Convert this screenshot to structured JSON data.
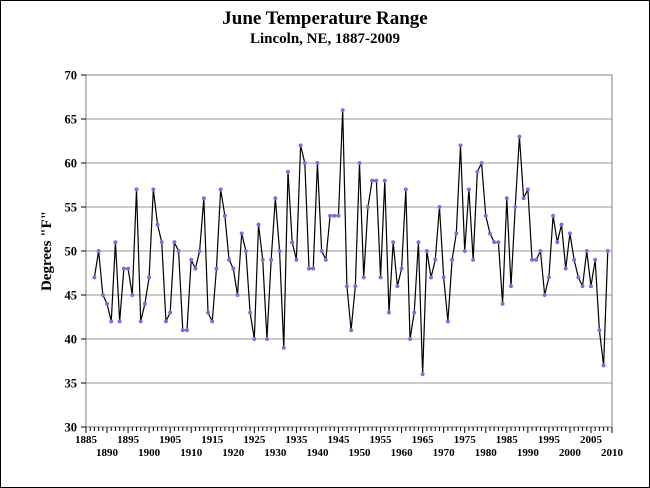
{
  "chart_data": {
    "type": "line",
    "title": "June Temperature Range",
    "subtitle": "Lincoln, NE, 1887-2009",
    "xlabel": "",
    "ylabel": "Degrees \"F\"",
    "xlim": [
      1885,
      2010
    ],
    "ylim": [
      30,
      70
    ],
    "yticks": [
      30,
      35,
      40,
      45,
      50,
      55,
      60,
      65,
      70
    ],
    "xticks_top_row": [
      1885,
      1895,
      1905,
      1915,
      1925,
      1935,
      1945,
      1955,
      1965,
      1975,
      1985,
      1995,
      2005
    ],
    "xticks_bottom_row": [
      1890,
      1900,
      1910,
      1920,
      1930,
      1940,
      1950,
      1960,
      1970,
      1980,
      1990,
      2000,
      2010
    ],
    "grid": "horizontal",
    "line_color": "#000000",
    "marker_color": "#7b6fd8",
    "series": [
      {
        "x": [
          1887,
          1888,
          1889,
          1890,
          1891,
          1892,
          1893,
          1894,
          1895,
          1896,
          1897,
          1898,
          1899,
          1900,
          1901,
          1902,
          1903,
          1904,
          1905,
          1906,
          1907,
          1908,
          1909,
          1910,
          1911,
          1912,
          1913,
          1914,
          1915,
          1916,
          1917,
          1918,
          1919,
          1920,
          1921,
          1922,
          1923,
          1924,
          1925,
          1926,
          1927,
          1928,
          1929,
          1930,
          1931,
          1932,
          1933,
          1934,
          1935,
          1936,
          1937,
          1938,
          1939,
          1940,
          1941,
          1942,
          1943,
          1944,
          1945,
          1946,
          1947,
          1948,
          1949,
          1950,
          1951,
          1952,
          1953,
          1954,
          1955,
          1956,
          1957,
          1958,
          1959,
          1960,
          1961,
          1962,
          1963,
          1964,
          1965,
          1966,
          1967,
          1968,
          1969,
          1970,
          1971,
          1972,
          1973,
          1974,
          1975,
          1976,
          1977,
          1978,
          1979,
          1980,
          1981,
          1982,
          1983,
          1984,
          1985,
          1986,
          1987,
          1988,
          1989,
          1990,
          1991,
          1992,
          1993,
          1994,
          1995,
          1996,
          1997,
          1998,
          1999,
          2000,
          2001,
          2002,
          2003,
          2004,
          2005,
          2006,
          2007,
          2008,
          2009
        ],
        "values": [
          47,
          50,
          45,
          44,
          42,
          51,
          42,
          48,
          48,
          45,
          57,
          42,
          44,
          47,
          57,
          53,
          51,
          42,
          43,
          51,
          50,
          41,
          41,
          49,
          48,
          50,
          56,
          43,
          42,
          48,
          57,
          54,
          49,
          48,
          45,
          52,
          50,
          43,
          40,
          53,
          49,
          40,
          49,
          56,
          50,
          39,
          59,
          51,
          49,
          62,
          60,
          48,
          48,
          60,
          50,
          49,
          54,
          54,
          54,
          66,
          46,
          41,
          46,
          60,
          47,
          55,
          58,
          58,
          47,
          58,
          43,
          51,
          46,
          48,
          57,
          40,
          43,
          51,
          36,
          50,
          47,
          49,
          55,
          47,
          42,
          49,
          52,
          62,
          50,
          57,
          49,
          59,
          60,
          54,
          52,
          51,
          51,
          44,
          56,
          46,
          55,
          63,
          56,
          57,
          49,
          49,
          50,
          45,
          47,
          54,
          51,
          53,
          48,
          52,
          49,
          47,
          46,
          50,
          46,
          49,
          41,
          37,
          50
        ]
      }
    ]
  }
}
